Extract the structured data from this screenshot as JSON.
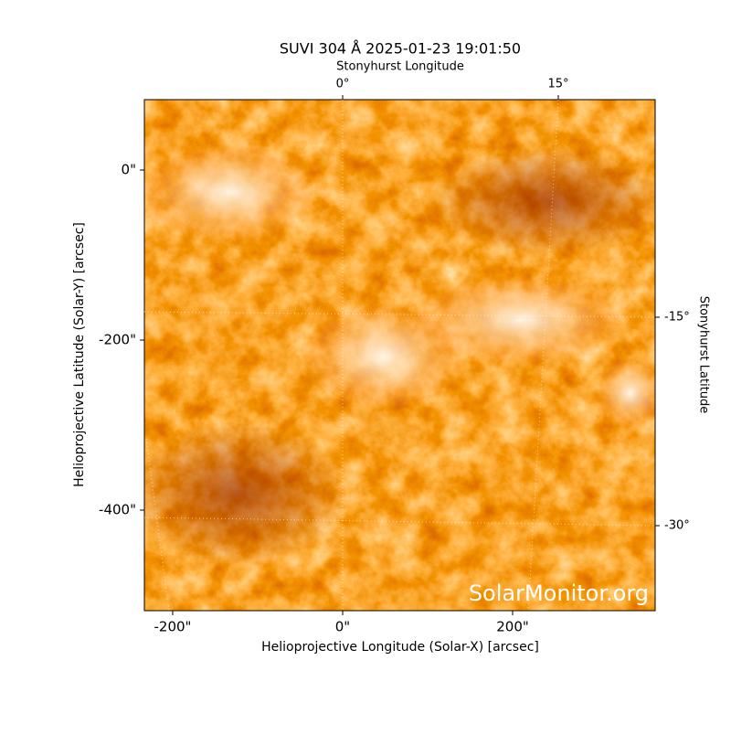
{
  "chart_data": {
    "type": "image",
    "title": "SUVI 304 Å 2025-01-23 19:01:50",
    "xlabel": "Helioprojective Longitude (Solar-X) [arcsec]",
    "ylabel": "Helioprojective Latitude (Solar-Y) [arcsec]",
    "top_label": "Stonyhurst Longitude",
    "right_label": "Stonyhurst Latitude",
    "xlim": [
      -233.3,
      367.7
    ],
    "ylim": [
      -518.3,
      82.8
    ],
    "xticks": [
      {
        "value": -200,
        "label": "-200\""
      },
      {
        "value": 0,
        "label": "0\""
      },
      {
        "value": 200,
        "label": "200\""
      }
    ],
    "yticks": [
      {
        "value": 0,
        "label": "0\""
      },
      {
        "value": -200,
        "label": "-200\""
      },
      {
        "value": -400,
        "label": "-400\""
      }
    ],
    "lon_ticks": [
      {
        "value": 0,
        "label": "0°"
      },
      {
        "value": 15,
        "label": "15°"
      }
    ],
    "lat_ticks": [
      {
        "value": -15,
        "label": "-15°"
      },
      {
        "value": -30,
        "label": "-30°"
      }
    ],
    "watermark": "SolarMonitor.org"
  }
}
